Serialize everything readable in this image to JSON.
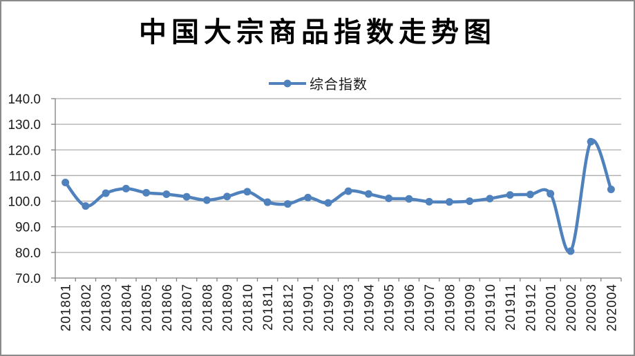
{
  "frame": {
    "background": "#ffffff",
    "border_color": "#8a8a8a"
  },
  "chart_data": {
    "type": "line",
    "title": "中国大宗商品指数走势图",
    "xlabel": "",
    "ylabel": "",
    "categories": [
      "201801",
      "201802",
      "201803",
      "201804",
      "201805",
      "201806",
      "201807",
      "201808",
      "201809",
      "201810",
      "201811",
      "201812",
      "201901",
      "201902",
      "201903",
      "201904",
      "201905",
      "201906",
      "201907",
      "201908",
      "201909",
      "201910",
      "201911",
      "201912",
      "202001",
      "202002",
      "202003",
      "202004"
    ],
    "series": [
      {
        "name": "综合指数",
        "color": "#4F81BD",
        "values": [
          107.3,
          98.1,
          103.1,
          104.9,
          103.3,
          102.7,
          101.7,
          100.4,
          101.8,
          103.7,
          99.6,
          98.9,
          101.4,
          99.3,
          103.9,
          102.8,
          101.1,
          100.9,
          99.8,
          99.7,
          100.0,
          101.0,
          102.4,
          102.6,
          102.9,
          80.5,
          123.2,
          104.6
        ]
      }
    ],
    "ylim": [
      70,
      140
    ],
    "ytick_step": 10,
    "ytick_labels": [
      "140.0",
      "130.0",
      "120.0",
      "110.0",
      "100.0",
      "90.0",
      "80.0",
      "70.0"
    ],
    "grid": "horizontal",
    "legend_position": "top-center",
    "smooth": true,
    "marker": "circle",
    "grid_color": "#acacac",
    "axis_color": "#7f7f7f",
    "text_color": "#1a1a1a"
  }
}
